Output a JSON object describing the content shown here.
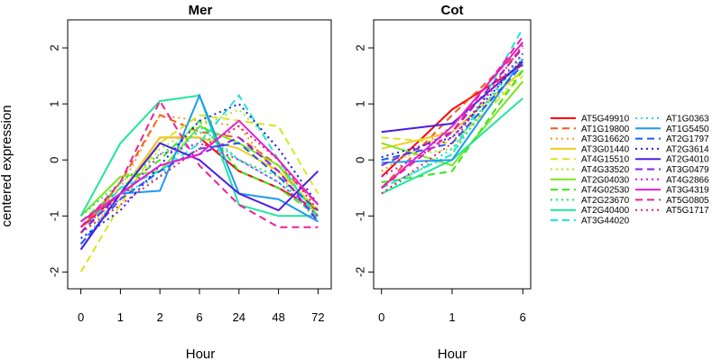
{
  "chart_data": {
    "type": "line",
    "ylabel": "centered expression",
    "ylim": [
      -2.3,
      2.5
    ],
    "yticks": [
      -2,
      -1,
      0,
      1,
      2
    ],
    "panels": [
      {
        "title": "Mer",
        "xlabel": "Hour",
        "categories": [
          "0",
          "1",
          "2",
          "6",
          "24",
          "48",
          "72"
        ],
        "series_values": [
          [
            -1.2,
            -0.6,
            0.4,
            0.4,
            -0.2,
            -0.5,
            -0.9
          ],
          [
            -1.3,
            -0.4,
            0.8,
            0.5,
            0.4,
            -0.1,
            -0.8
          ],
          [
            -1.2,
            -0.5,
            0.8,
            0.7,
            0.6,
            -0.3,
            -0.9
          ],
          [
            -1.1,
            -0.6,
            0.4,
            0.4,
            0.2,
            -0.2,
            -0.9
          ],
          [
            -2.0,
            -0.8,
            0.3,
            0.8,
            0.7,
            0.6,
            -0.6
          ],
          [
            -1.3,
            -0.7,
            0.2,
            0.6,
            0.9,
            0.2,
            -0.8
          ],
          [
            -1.0,
            -0.3,
            -0.2,
            0.6,
            0.3,
            -0.1,
            -1.0
          ],
          [
            -1.1,
            -0.5,
            0.0,
            0.7,
            -0.2,
            -0.5,
            -1.0
          ],
          [
            -1.0,
            -0.4,
            0.1,
            0.5,
            0.0,
            -0.3,
            -1.1
          ],
          [
            -1.0,
            0.3,
            1.05,
            1.15,
            -0.8,
            -1.0,
            -1.0
          ],
          [
            -1.3,
            -0.5,
            -0.2,
            0.3,
            1.15,
            0.0,
            -1.1
          ],
          [
            -1.5,
            -0.6,
            -0.3,
            0.6,
            0.0,
            -0.4,
            -1.0
          ],
          [
            -1.6,
            -0.6,
            -0.55,
            1.15,
            -0.6,
            -0.7,
            -1.1
          ],
          [
            -1.5,
            -0.7,
            -0.2,
            0.2,
            0.3,
            -0.3,
            -0.9
          ],
          [
            -1.4,
            -0.9,
            -0.1,
            0.7,
            1.0,
            0.2,
            -0.8
          ],
          [
            -1.6,
            -0.6,
            0.3,
            0.0,
            -0.6,
            -0.9,
            -0.2
          ],
          [
            -1.3,
            -0.6,
            -0.1,
            0.1,
            0.4,
            -0.2,
            -1.1
          ],
          [
            -1.2,
            -0.7,
            0.1,
            0.3,
            0.0,
            -0.4,
            -1.0
          ],
          [
            -1.1,
            -0.6,
            -0.1,
            0.1,
            0.7,
            0.0,
            -0.8
          ],
          [
            -1.2,
            -0.4,
            1.05,
            -0.1,
            -0.8,
            -1.2,
            -1.2
          ],
          [
            -1.3,
            -0.8,
            -0.3,
            0.2,
            0.6,
            0.0,
            -0.9
          ]
        ]
      },
      {
        "title": "Cot",
        "xlabel": "Hour",
        "categories": [
          "0",
          "1",
          "6"
        ],
        "series_values": [
          [
            -0.3,
            0.9,
            1.7
          ],
          [
            -0.5,
            0.8,
            2.0
          ],
          [
            -0.2,
            0.6,
            1.8
          ],
          [
            0.2,
            0.5,
            1.6
          ],
          [
            0.4,
            0.3,
            1.5
          ],
          [
            0.0,
            0.2,
            1.6
          ],
          [
            0.3,
            -0.1,
            1.4
          ],
          [
            -0.4,
            -0.2,
            1.6
          ],
          [
            -0.5,
            0.1,
            1.9
          ],
          [
            -0.6,
            0.0,
            1.1
          ],
          [
            -0.5,
            0.1,
            2.35
          ],
          [
            -0.6,
            0.2,
            1.9
          ],
          [
            -0.05,
            0.0,
            1.8
          ],
          [
            0.0,
            0.3,
            1.7
          ],
          [
            0.05,
            0.4,
            1.8
          ],
          [
            0.5,
            0.65,
            1.75
          ],
          [
            -0.1,
            0.5,
            2.0
          ],
          [
            -0.3,
            0.4,
            1.9
          ],
          [
            -0.5,
            0.6,
            2.1
          ],
          [
            -0.5,
            0.5,
            2.2
          ],
          [
            -0.6,
            0.3,
            2.05
          ]
        ]
      }
    ],
    "legend_position": "right",
    "series": [
      {
        "name": "AT5G49910",
        "color": "#ff0000",
        "dash": "solid"
      },
      {
        "name": "AT1G19800",
        "color": "#f25a1e",
        "dash": "dashed"
      },
      {
        "name": "AT3G16620",
        "color": "#f29a1e",
        "dash": "dotted"
      },
      {
        "name": "AT3G01440",
        "color": "#f2cc1e",
        "dash": "solid"
      },
      {
        "name": "AT4G15510",
        "color": "#d8e61e",
        "dash": "dashed"
      },
      {
        "name": "AT4G33520",
        "color": "#b0e61e",
        "dash": "dotted"
      },
      {
        "name": "AT2G04030",
        "color": "#7ae61e",
        "dash": "solid"
      },
      {
        "name": "AT4G02530",
        "color": "#3ae61e",
        "dash": "dashed"
      },
      {
        "name": "AT2G23670",
        "color": "#1ee65a",
        "dash": "dotted"
      },
      {
        "name": "AT2G40400",
        "color": "#1ee69a",
        "dash": "solid"
      },
      {
        "name": "AT3G44020",
        "color": "#1ee6d8",
        "dash": "dashed"
      },
      {
        "name": "AT1G0363",
        "color": "#1ed8f2",
        "dash": "dotted"
      },
      {
        "name": "AT1G5450",
        "color": "#1e9af2",
        "dash": "solid"
      },
      {
        "name": "AT2G1797",
        "color": "#1e5af2",
        "dash": "dashed"
      },
      {
        "name": "AT2G3614",
        "color": "#1e1ef2",
        "dash": "dotted"
      },
      {
        "name": "AT2G4010",
        "color": "#4a1ee6",
        "dash": "solid"
      },
      {
        "name": "AT3G0479",
        "color": "#8a1ee6",
        "dash": "dashed"
      },
      {
        "name": "AT4G2866",
        "color": "#c81ee6",
        "dash": "dotted"
      },
      {
        "name": "AT3G4319",
        "color": "#e61ed8",
        "dash": "solid"
      },
      {
        "name": "AT5G0805",
        "color": "#f21e9a",
        "dash": "dashed"
      },
      {
        "name": "AT5G1717",
        "color": "#f21e5a",
        "dash": "dotted"
      }
    ]
  }
}
